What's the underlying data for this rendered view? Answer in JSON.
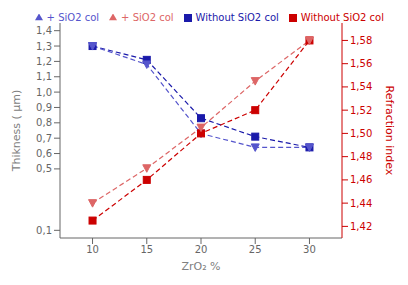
{
  "chart_data": {
    "type": "line",
    "xlabel": "ZrO₂ %",
    "ylabel": "Thikness ( μm)",
    "y2label": "Refraction index",
    "x": [
      10,
      15,
      20,
      25,
      30
    ],
    "xlim": [
      7,
      33
    ],
    "xticks": [
      10,
      15,
      20,
      25,
      30
    ],
    "ylim": [
      0.05,
      1.45
    ],
    "yticks": [
      {
        "value": 0.1,
        "label": "0,1"
      },
      {
        "value": 0.5,
        "label": "0,5"
      },
      {
        "value": 0.6,
        "label": "0,6"
      },
      {
        "value": 0.7,
        "label": "0,7"
      },
      {
        "value": 0.8,
        "label": "0,8"
      },
      {
        "value": 0.9,
        "label": "0,9"
      },
      {
        "value": 1.0,
        "label": "1,0"
      },
      {
        "value": 1.1,
        "label": "1,1"
      },
      {
        "value": 1.2,
        "label": "1,2"
      },
      {
        "value": 1.3,
        "label": "1,3"
      },
      {
        "value": 1.4,
        "label": "1,4"
      }
    ],
    "y2lim": [
      1.41,
      1.595
    ],
    "y2ticks": [
      {
        "value": 1.42,
        "label": "1,42"
      },
      {
        "value": 1.44,
        "label": "1,44"
      },
      {
        "value": 1.46,
        "label": "1,46"
      },
      {
        "value": 1.48,
        "label": "1,48"
      },
      {
        "value": 1.5,
        "label": "1,50"
      },
      {
        "value": 1.52,
        "label": "1,52"
      },
      {
        "value": 1.54,
        "label": "1,54"
      },
      {
        "value": 1.56,
        "label": "1,56"
      },
      {
        "value": 1.58,
        "label": "1,58"
      }
    ],
    "grid": false,
    "legend": "upper right",
    "series": [
      {
        "name": "Without SiO2 col",
        "color": "#1a1aaa",
        "marker": "square",
        "line_style": "dashed",
        "values": [
          1.3,
          1.21,
          0.83,
          0.71,
          0.64
        ]
      },
      {
        "name": "+ SiO2 col",
        "color": "#5555cc",
        "marker": "triangle-down",
        "line_style": "dashed",
        "values": [
          1.3,
          1.18,
          0.73,
          0.64,
          0.64
        ]
      },
      {
        "name": "Without SiO2 col",
        "color": "#cc0000",
        "marker": "square",
        "line_style": "dashed",
        "axis": "y2",
        "values": [
          1.425,
          1.46,
          1.5,
          1.52,
          1.58
        ]
      },
      {
        "name": "+ SiO2 col",
        "color": "#dd6666",
        "marker": "triangle-down",
        "line_style": "dashed",
        "axis": "y2",
        "values": [
          1.44,
          1.47,
          1.505,
          1.545,
          1.58
        ]
      }
    ]
  }
}
